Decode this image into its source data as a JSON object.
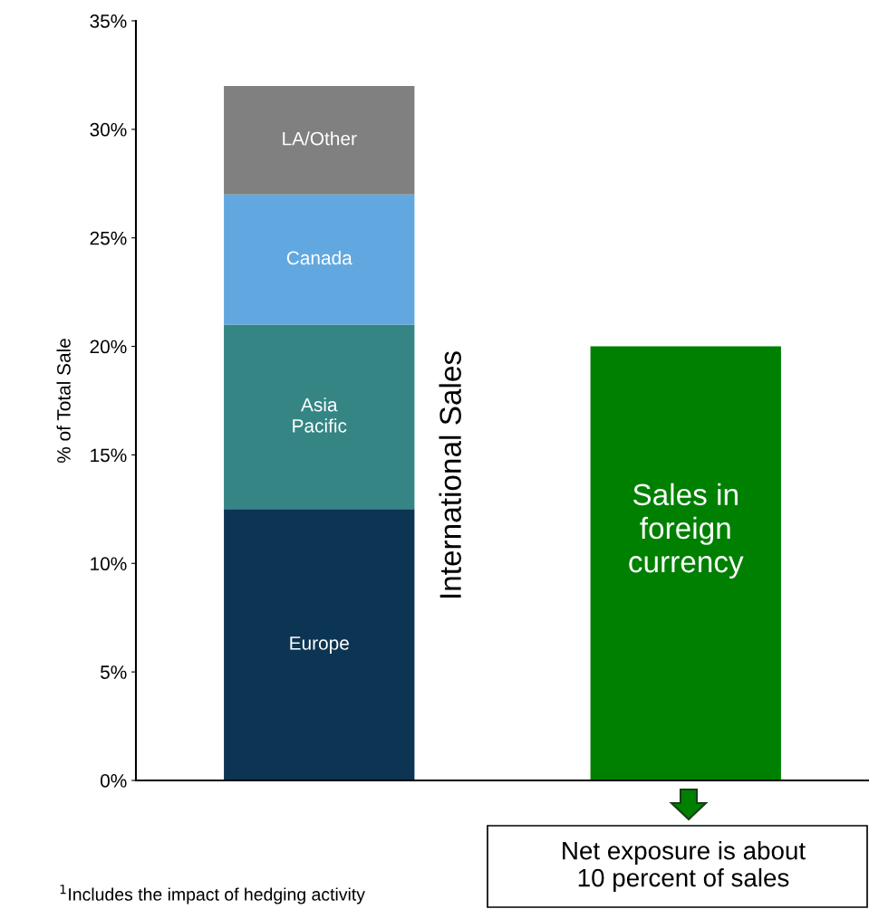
{
  "chart_data": {
    "type": "bar",
    "stacked": true,
    "ylabel": "% of Total Sale",
    "categories": [
      null,
      null
    ],
    "series": [
      {
        "name": "Europe",
        "color": "#0c3553",
        "values": [
          12.5,
          null
        ]
      },
      {
        "name": "Asia\nPacific",
        "color": "#358585",
        "values": [
          8.5,
          null
        ]
      },
      {
        "name": "Canada",
        "color": "#62a8e0",
        "values": [
          6,
          null
        ]
      },
      {
        "name": "LA/Other",
        "color": "#808080",
        "values": [
          5,
          null
        ]
      },
      {
        "name": "Sales in\nforeign\ncurrency",
        "color": "#008000",
        "values": [
          null,
          20
        ]
      }
    ],
    "ylim": [
      0,
      35
    ],
    "yticks": [
      {
        "value": 0,
        "label": "0%"
      },
      {
        "value": 5,
        "label": "5%"
      },
      {
        "value": 10,
        "label": "10%"
      },
      {
        "value": 15,
        "label": "15%"
      },
      {
        "value": 20,
        "label": "20%"
      },
      {
        "value": 25,
        "label": "25%"
      },
      {
        "value": 30,
        "label": "30%"
      },
      {
        "value": 35,
        "label": "35%"
      }
    ],
    "tick_labels": "y",
    "grid": false,
    "legend": false,
    "annotations": [
      "International Sales",
      "Net exposure is about\n10 percent of sales",
      "$^{1}$Includes the impact of hedging activity"
    ]
  }
}
